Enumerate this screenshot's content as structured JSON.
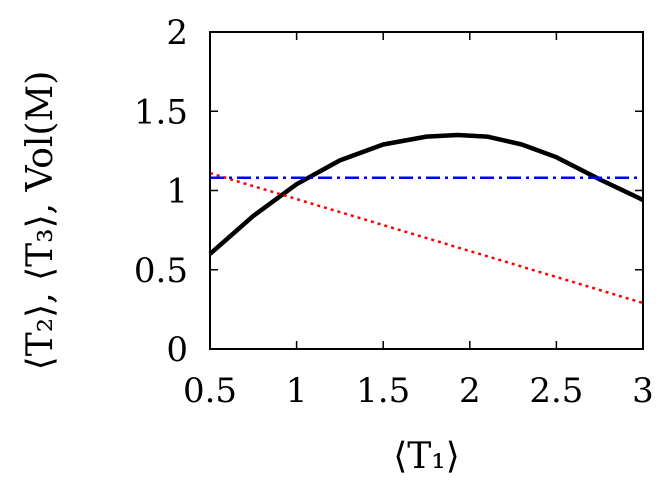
{
  "chart_data": {
    "type": "line",
    "xlabel": "⟨T₁⟩",
    "ylabel": "⟨T₂⟩, ⟨T₃⟩, Vol(M)",
    "xlim": [
      0.5,
      3
    ],
    "ylim": [
      0,
      2
    ],
    "x_ticks": [
      "0.5",
      "1",
      "1.5",
      "2",
      "2.5",
      "3"
    ],
    "y_ticks": [
      "0",
      "0.5",
      "1",
      "1.5",
      "2"
    ],
    "x_tick_values": [
      0.5,
      1,
      1.5,
      2,
      2.5,
      3
    ],
    "y_tick_values": [
      0,
      0.5,
      1,
      1.5,
      2
    ],
    "grid": false,
    "series": [
      {
        "style": "solid",
        "color": "#000000",
        "x": [
          0.5,
          0.75,
          1.0,
          1.25,
          1.5,
          1.75,
          1.93,
          2.1,
          2.3,
          2.5,
          2.75,
          3.0
        ],
        "y": [
          0.6,
          0.84,
          1.04,
          1.19,
          1.29,
          1.34,
          1.35,
          1.34,
          1.29,
          1.21,
          1.07,
          0.94
        ]
      },
      {
        "style": "dotted",
        "color": "#ff0000",
        "x": [
          0.5,
          3.0
        ],
        "y": [
          1.11,
          0.29
        ]
      },
      {
        "style": "dash-dot",
        "color": "#0000ff",
        "x": [
          0.5,
          3.0
        ],
        "y": [
          1.08,
          1.08
        ]
      }
    ]
  }
}
